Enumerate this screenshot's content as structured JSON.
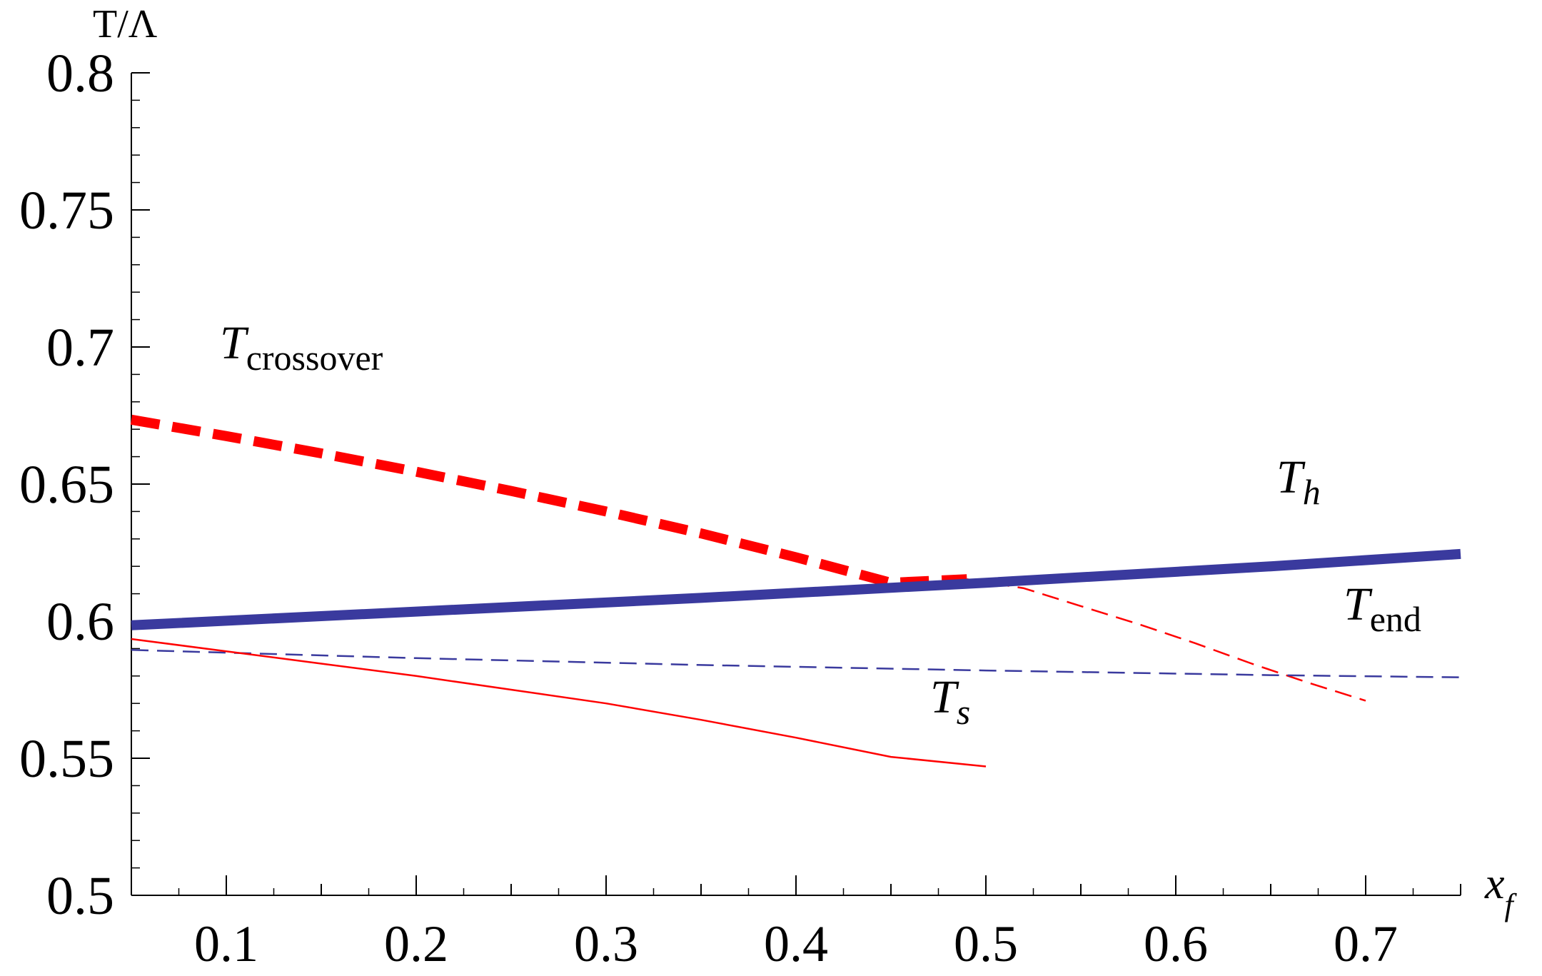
{
  "chart_data": {
    "type": "line",
    "title": "",
    "xlabel": "x",
    "xlabel_sub": "f",
    "ylabel": "T/Λ",
    "xlim": [
      0.05,
      0.75
    ],
    "ylim": [
      0.5,
      0.8
    ],
    "x_ticks": [
      "0.1",
      "0.2",
      "0.3",
      "0.4",
      "0.5",
      "0.6",
      "0.7"
    ],
    "y_ticks": [
      "0.5",
      "0.55",
      "0.6",
      "0.65",
      "0.7",
      "0.75",
      "0.8"
    ],
    "grid": false,
    "legend": "none (curves labeled inline)",
    "series": [
      {
        "name": "T_crossover",
        "label_main": "T",
        "label_sub": "crossover",
        "label_sub_italic": false,
        "color": "#ff0000",
        "style": "thick-dashed",
        "x": [
          0.05,
          0.1,
          0.15,
          0.2,
          0.25,
          0.3,
          0.35,
          0.4,
          0.45,
          0.49
        ],
        "y": [
          0.6735,
          0.6675,
          0.6612,
          0.6545,
          0.6475,
          0.64,
          0.632,
          0.6233,
          0.614,
          0.6153
        ]
      },
      {
        "name": "T_crossover (continuation)",
        "color": "#ff0000",
        "style": "thin-dashed",
        "x": [
          0.49,
          0.52,
          0.55,
          0.58,
          0.61,
          0.64,
          0.67,
          0.7
        ],
        "y": [
          0.6153,
          0.612,
          0.6055,
          0.599,
          0.592,
          0.5845,
          0.5775,
          0.571
        ]
      },
      {
        "name": "T_h",
        "label_main": "T",
        "label_sub": "h",
        "label_sub_italic": true,
        "color": "#3a3a9e",
        "style": "thick-solid",
        "x": [
          0.05,
          0.2,
          0.35,
          0.5,
          0.65,
          0.75
        ],
        "y": [
          0.5985,
          0.6035,
          0.6085,
          0.614,
          0.62,
          0.6245
        ]
      },
      {
        "name": "T_end",
        "label_main": "T",
        "label_sub": "end",
        "label_sub_italic": false,
        "color": "#3a3a9e",
        "style": "thin-dashed",
        "x": [
          0.05,
          0.2,
          0.35,
          0.5,
          0.65,
          0.75
        ],
        "y": [
          0.5895,
          0.5865,
          0.584,
          0.582,
          0.5803,
          0.5795
        ]
      },
      {
        "name": "T_s",
        "label_main": "T",
        "label_sub": "s",
        "label_sub_italic": true,
        "color": "#ff0000",
        "style": "thin-solid",
        "x": [
          0.05,
          0.1,
          0.15,
          0.2,
          0.25,
          0.3,
          0.35,
          0.4,
          0.45,
          0.5
        ],
        "y": [
          0.5935,
          0.589,
          0.5845,
          0.58,
          0.575,
          0.57,
          0.564,
          0.5575,
          0.5505,
          0.547
        ]
      }
    ]
  }
}
